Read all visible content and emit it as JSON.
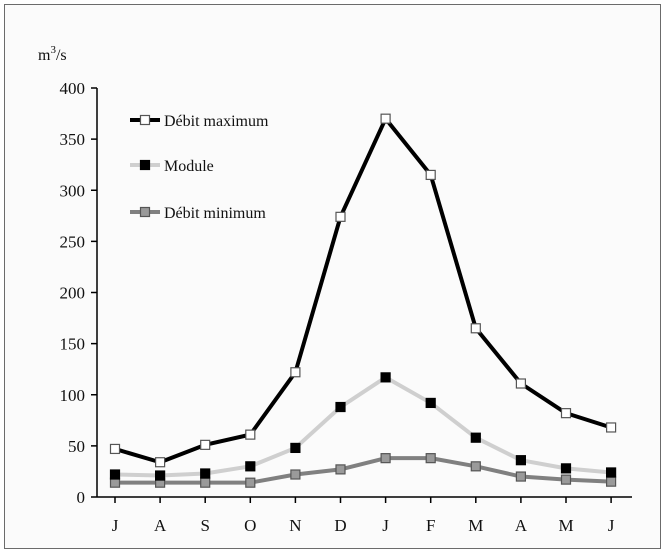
{
  "chart_data": {
    "type": "line",
    "title": "",
    "xlabel": "",
    "ylabel": "m3/s",
    "unit": {
      "base": "m",
      "exp": "3",
      "rest": "/s"
    },
    "categories": [
      "J",
      "A",
      "S",
      "O",
      "N",
      "D",
      "J",
      "F",
      "M",
      "A",
      "M",
      "J"
    ],
    "ylim": [
      0,
      400
    ],
    "yticks": [
      0,
      50,
      100,
      150,
      200,
      250,
      300,
      350,
      400
    ],
    "grid": false,
    "legend_position": "top-left",
    "series": [
      {
        "name": "Débit maximum",
        "values": [
          47,
          34,
          51,
          61,
          122,
          274,
          370,
          315,
          165,
          111,
          82,
          68
        ],
        "line_color": "#000000",
        "marker_fill": "#ffffff",
        "marker_stroke": "#555555"
      },
      {
        "name": "Module",
        "values": [
          22,
          21,
          23,
          30,
          48,
          88,
          117,
          92,
          58,
          36,
          28,
          24
        ],
        "line_color": "#cfcfcf",
        "marker_fill": "#000000",
        "marker_stroke": "#000000"
      },
      {
        "name": "Débit minimum",
        "values": [
          14,
          14,
          14,
          14,
          22,
          27,
          38,
          38,
          30,
          20,
          17,
          15
        ],
        "line_color": "#808080",
        "marker_fill": "#9a9a9a",
        "marker_stroke": "#555555"
      }
    ]
  }
}
